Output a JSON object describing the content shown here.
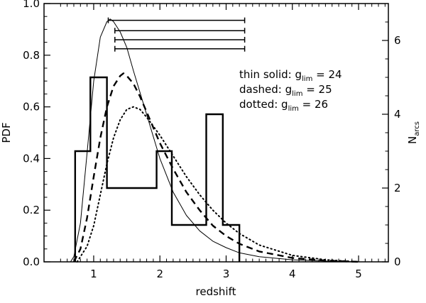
{
  "chart_data": {
    "type": "line",
    "xlabel": "redshift",
    "ylabel_left": "PDF",
    "ylabel_right_main": "N",
    "ylabel_right_sub": "arcs",
    "xlim": [
      0.25,
      5.45
    ],
    "ylim_left": [
      0,
      1.0
    ],
    "ylim_right": [
      0,
      7.0
    ],
    "x_ticks": [
      1,
      2,
      3,
      4,
      5
    ],
    "x_tick_labels": [
      "1",
      "2",
      "3",
      "4",
      "5"
    ],
    "y_left_ticks": [
      0.0,
      0.2,
      0.4,
      0.6,
      0.8,
      1.0
    ],
    "y_left_tick_labels": [
      "0.0",
      "0.2",
      "0.4",
      "0.6",
      "0.8",
      "1.0"
    ],
    "y_right_ticks": [
      0,
      2,
      4,
      6
    ],
    "y_right_tick_labels": [
      "0",
      "2",
      "4",
      "6"
    ],
    "legend": [
      {
        "prefix": "thin solid: g",
        "sub": "lim",
        "suffix": " = 24"
      },
      {
        "prefix": "dashed: g",
        "sub": "lim",
        "suffix": " = 25"
      },
      {
        "prefix": "dotted: g",
        "sub": "lim",
        "suffix": " = 26"
      }
    ],
    "legend_placement": "upper-right",
    "series": [
      {
        "style": "thin-solid",
        "x": [
          0.65,
          0.7,
          0.8,
          0.9,
          1.0,
          1.1,
          1.2,
          1.25,
          1.3,
          1.4,
          1.5,
          1.6,
          1.8,
          2.0,
          2.2,
          2.4,
          2.6,
          2.8,
          3.0,
          3.2,
          3.5,
          4.0,
          4.5,
          5.0
        ],
        "y": [
          0.0,
          0.02,
          0.15,
          0.42,
          0.7,
          0.87,
          0.93,
          0.94,
          0.93,
          0.89,
          0.83,
          0.74,
          0.57,
          0.4,
          0.27,
          0.18,
          0.12,
          0.08,
          0.055,
          0.035,
          0.02,
          0.008,
          0.003,
          0.0
        ]
      },
      {
        "style": "dashed",
        "x": [
          0.7,
          0.8,
          0.9,
          1.0,
          1.1,
          1.2,
          1.3,
          1.4,
          1.45,
          1.5,
          1.6,
          1.7,
          1.8,
          2.0,
          2.2,
          2.4,
          2.6,
          2.8,
          3.0,
          3.2,
          3.5,
          4.0,
          4.5,
          5.0
        ],
        "y": [
          0.0,
          0.05,
          0.17,
          0.33,
          0.48,
          0.6,
          0.68,
          0.72,
          0.73,
          0.72,
          0.69,
          0.64,
          0.58,
          0.46,
          0.36,
          0.27,
          0.2,
          0.14,
          0.1,
          0.07,
          0.04,
          0.015,
          0.005,
          0.0
        ]
      },
      {
        "style": "dotted",
        "x": [
          0.75,
          0.9,
          1.0,
          1.1,
          1.2,
          1.3,
          1.4,
          1.5,
          1.6,
          1.7,
          1.8,
          2.0,
          2.2,
          2.4,
          2.6,
          2.8,
          3.0,
          3.2,
          3.5,
          4.0,
          4.5,
          5.0
        ],
        "y": [
          0.0,
          0.06,
          0.14,
          0.26,
          0.38,
          0.48,
          0.55,
          0.59,
          0.6,
          0.59,
          0.56,
          0.49,
          0.41,
          0.33,
          0.26,
          0.2,
          0.15,
          0.11,
          0.065,
          0.025,
          0.008,
          0.0
        ]
      }
    ],
    "histogram": {
      "axis": "right",
      "bin_edges": [
        0.72,
        0.95,
        1.2,
        1.95,
        2.18,
        2.7,
        2.95,
        3.2
      ],
      "counts": [
        3,
        5,
        2,
        3,
        1,
        4,
        1
      ]
    },
    "error_bars": [
      {
        "x_start": 1.22,
        "x_end": 3.28,
        "y": 0.935
      },
      {
        "x_start": 1.32,
        "x_end": 3.28,
        "y": 0.895
      },
      {
        "x_start": 1.32,
        "x_end": 3.28,
        "y": 0.86
      },
      {
        "x_start": 1.32,
        "x_end": 3.28,
        "y": 0.825
      }
    ]
  }
}
